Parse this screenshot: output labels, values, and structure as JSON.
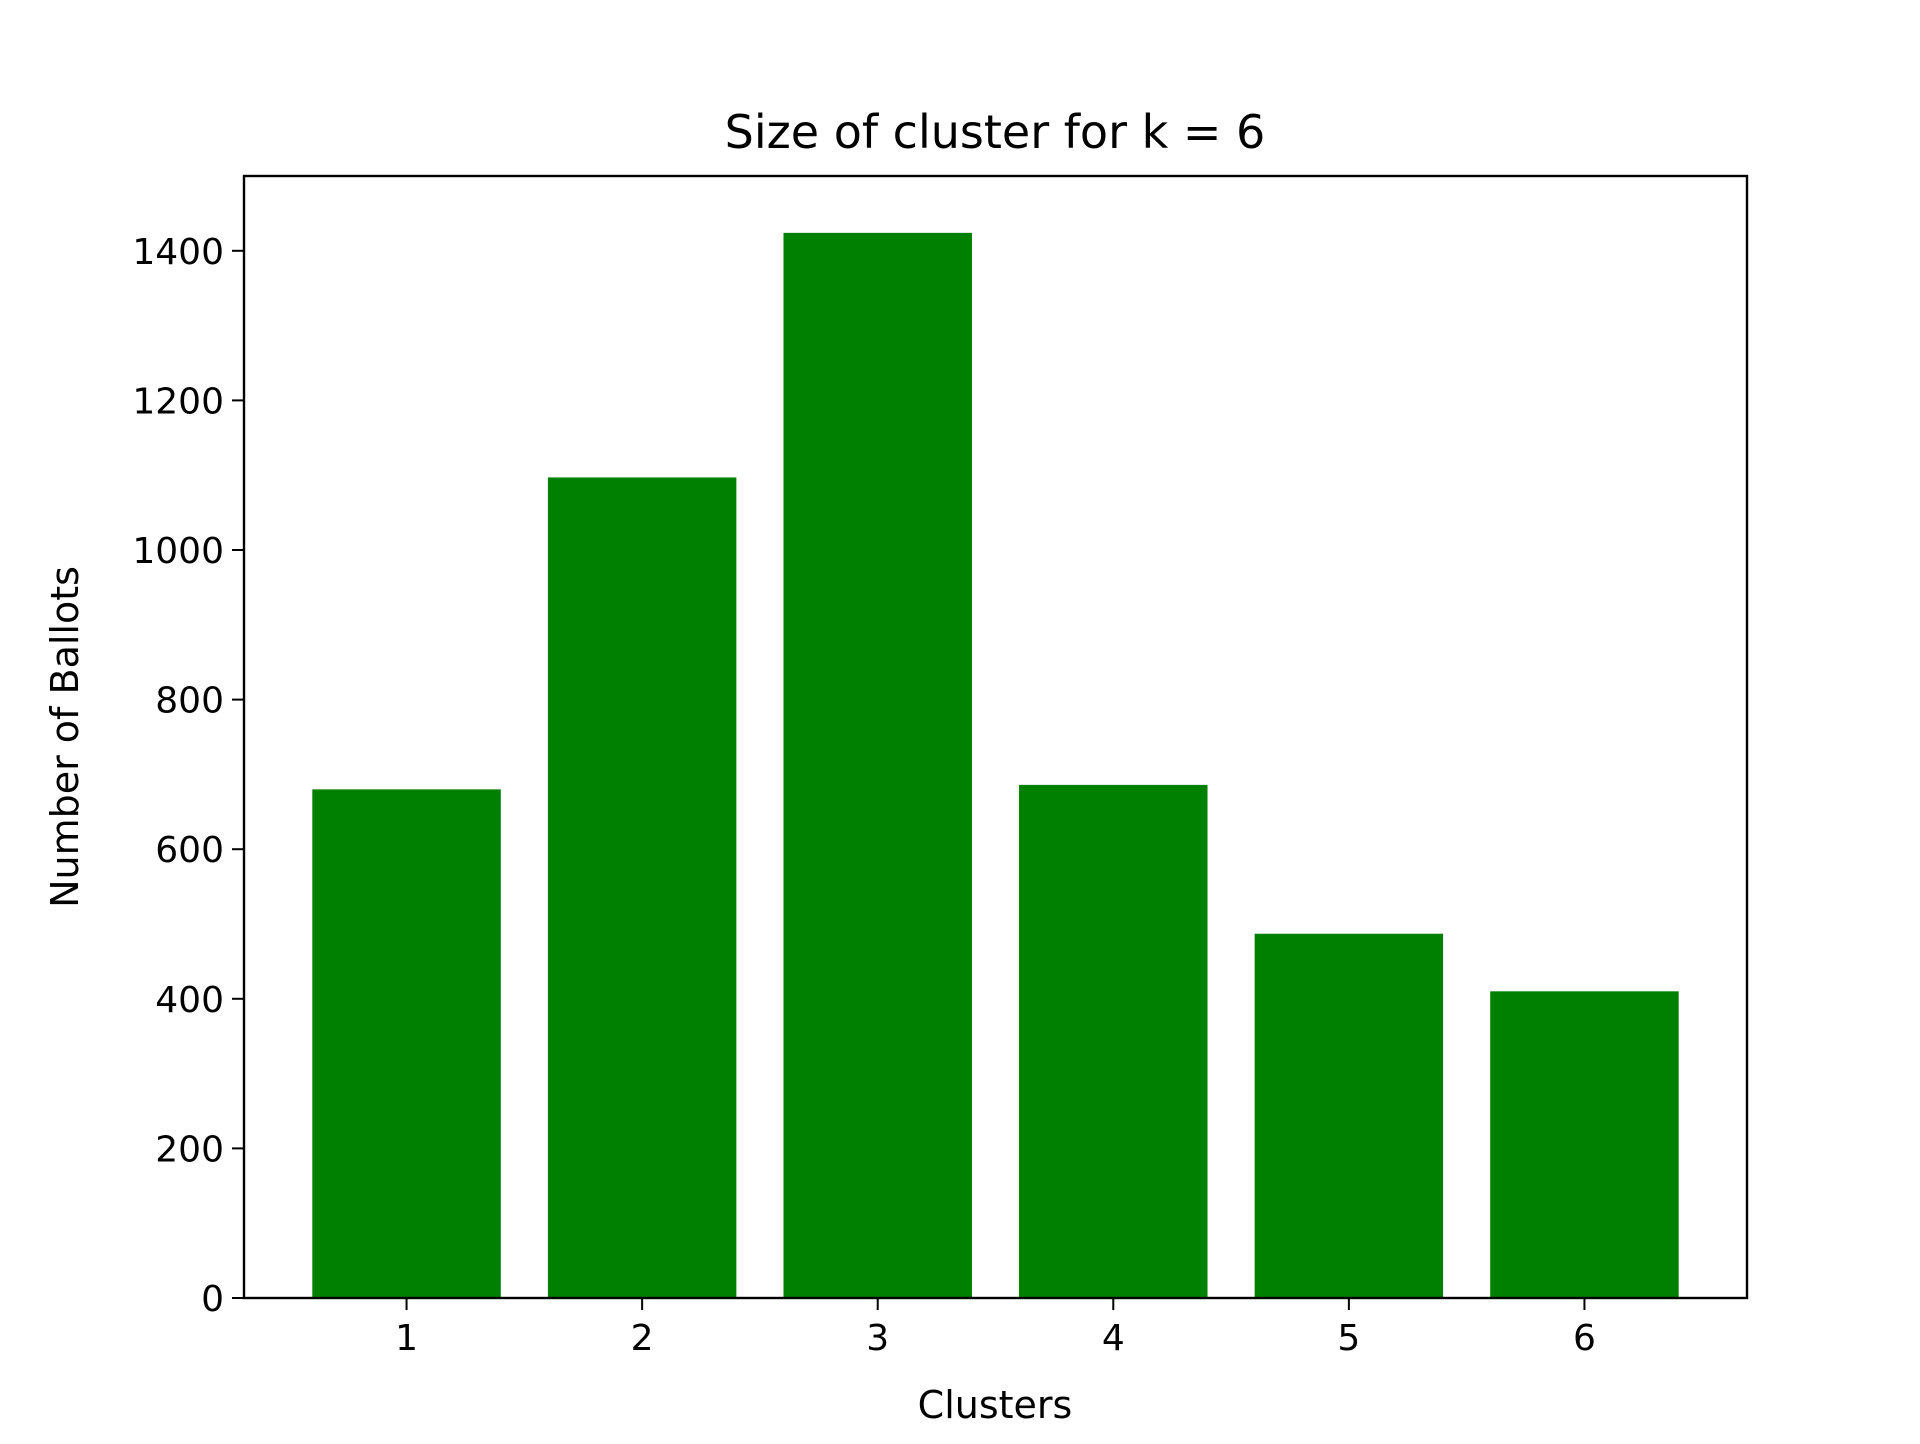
{
  "chart_data": {
    "type": "bar",
    "title": "Size of cluster for k = 6",
    "xlabel": "Clusters",
    "ylabel": "Number of Ballots",
    "categories": [
      "1",
      "2",
      "3",
      "4",
      "5",
      "6"
    ],
    "values": [
      680,
      1097,
      1424,
      686,
      487,
      410
    ],
    "ylim": [
      0,
      1500
    ],
    "yticks": [
      0,
      200,
      400,
      600,
      800,
      1000,
      1200,
      1400
    ],
    "ytick_labels": [
      "0",
      "200",
      "400",
      "600",
      "800",
      "1000",
      "1200",
      "1400"
    ],
    "bar_color": "#008000",
    "grid": false,
    "legend": "none"
  }
}
